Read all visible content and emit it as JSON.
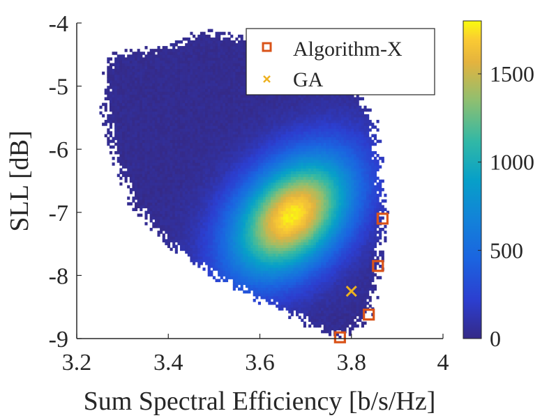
{
  "chart_data": {
    "type": "heatmap",
    "title": "",
    "xlabel": "Sum Spectral Efficiency [b/s/Hz]",
    "ylabel": "SLL [dB]",
    "xlim": [
      3.2,
      4.0
    ],
    "ylim": [
      -9,
      -4
    ],
    "xticks": [
      3.2,
      3.4,
      3.6,
      3.8,
      4.0
    ],
    "xtick_labels": [
      "3.2",
      "3.4",
      "3.6",
      "3.8",
      "4"
    ],
    "yticks": [
      -4,
      -5,
      -6,
      -7,
      -8,
      -9
    ],
    "ytick_labels": [
      "-4",
      "-5",
      "-6",
      "-7",
      "-8",
      "-9"
    ],
    "grid": false,
    "density": {
      "description_units": "counts per bin",
      "peak_center": [
        3.67,
        -7.05
      ],
      "peak_count": 1750,
      "cloud_outline": [
        [
          3.27,
          -4.55
        ],
        [
          3.38,
          -4.4
        ],
        [
          3.48,
          -4.15
        ],
        [
          3.6,
          -4.35
        ],
        [
          3.7,
          -4.6
        ],
        [
          3.8,
          -4.95
        ],
        [
          3.85,
          -5.6
        ],
        [
          3.87,
          -7.0
        ],
        [
          3.86,
          -7.9
        ],
        [
          3.84,
          -8.55
        ],
        [
          3.79,
          -8.95
        ],
        [
          3.72,
          -8.8
        ],
        [
          3.62,
          -8.45
        ],
        [
          3.5,
          -8.0
        ],
        [
          3.4,
          -7.5
        ],
        [
          3.32,
          -6.8
        ],
        [
          3.28,
          -6.0
        ],
        [
          3.26,
          -5.3
        ]
      ]
    },
    "colorbar": {
      "min": 0,
      "max": 1800,
      "ticks": [
        0,
        500,
        1000,
        1500
      ],
      "tick_labels": [
        "0",
        "500",
        "1000",
        "1500"
      ],
      "colormap": "parula"
    },
    "series": [
      {
        "name": "Algorithm-X",
        "marker": "square",
        "color": "#D95319",
        "points": [
          [
            3.868,
            -7.1
          ],
          [
            3.858,
            -7.85
          ],
          [
            3.838,
            -8.62
          ],
          [
            3.775,
            -8.98
          ]
        ]
      },
      {
        "name": "GA",
        "marker": "x",
        "color": "#EDB120",
        "points": [
          [
            3.8,
            -8.25
          ]
        ]
      }
    ],
    "legend": {
      "placement": "top-right",
      "entries": [
        "Algorithm-X",
        "GA"
      ]
    }
  }
}
